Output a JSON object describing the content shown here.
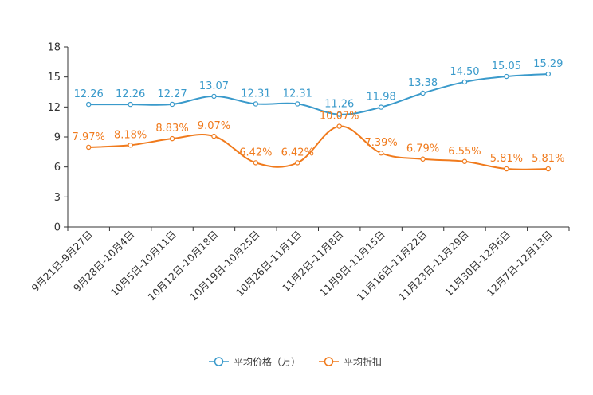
{
  "chart_data": {
    "type": "line",
    "title": "",
    "xlabel": "",
    "ylabel": "",
    "ylim": [
      0,
      18
    ],
    "yticks": [
      "0",
      "3",
      "6",
      "9",
      "12",
      "15",
      "18"
    ],
    "categories": [
      "9月21日-9月27日",
      "9月28日-10月4日",
      "10月5日-10月11日",
      "10月12日-10月18日",
      "10月19日-10月25日",
      "10月26日-11月1日",
      "11月2日-11月8日",
      "11月9日-11月15日",
      "11月16日-11月22日",
      "11月23日-11月29日",
      "11月30日-12月6日",
      "12月7日-12月13日"
    ],
    "series": [
      {
        "name": "平均价格（万）",
        "color": "#3a9acb",
        "values": [
          12.26,
          12.26,
          12.27,
          13.07,
          12.31,
          12.31,
          11.26,
          11.98,
          13.38,
          14.5,
          15.05,
          15.29
        ],
        "labels": [
          "12.26",
          "12.26",
          "12.27",
          "13.07",
          "12.31",
          "12.31",
          "11.26",
          "11.98",
          "13.38",
          "14.50",
          "15.05",
          "15.29"
        ]
      },
      {
        "name": "平均折扣",
        "color": "#f07a1c",
        "values": [
          7.97,
          8.18,
          8.83,
          9.07,
          6.42,
          6.42,
          10.07,
          7.39,
          6.79,
          6.55,
          5.81,
          5.81
        ],
        "labels": [
          "7.97%",
          "8.18%",
          "8.83%",
          "9.07%",
          "6.42%",
          "6.42%",
          "10.07%",
          "7.39%",
          "6.79%",
          "6.55%",
          "5.81%",
          "5.81%"
        ]
      }
    ],
    "grid": false,
    "legend": "bottom-center"
  }
}
